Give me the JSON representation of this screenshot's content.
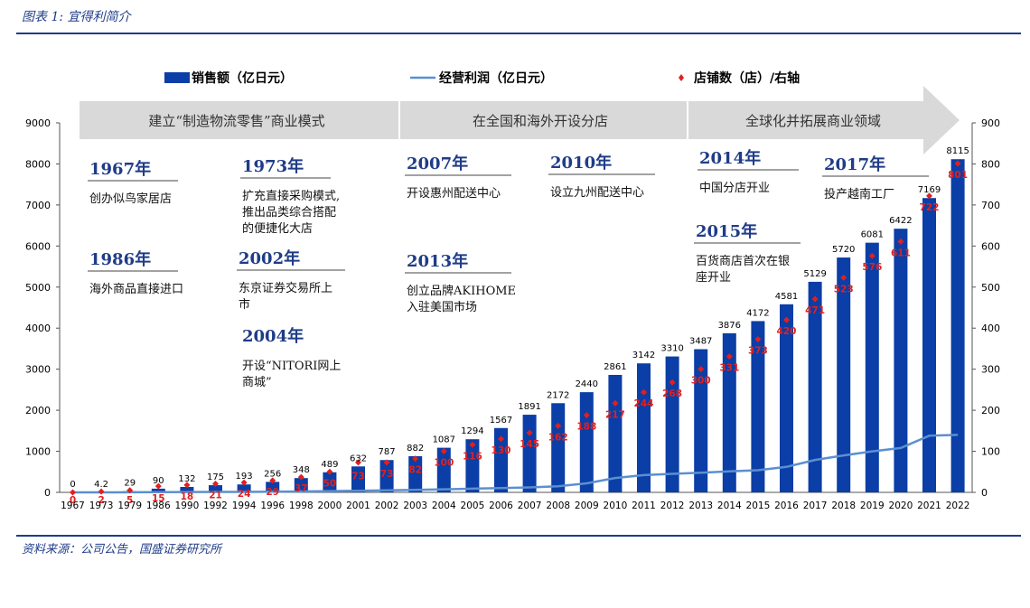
{
  "header": {
    "title": "图表 1:  宜得利简介"
  },
  "footer": {
    "source": "资料来源：公司公告，国盛证券研究所"
  },
  "colors": {
    "bar": "#0b3ea6",
    "line": "#5b8fd1",
    "dot": "#e02020",
    "arrow": "#d9d9d9",
    "accent": "#1f3c88"
  },
  "legend": {
    "bar": "销售额（亿日元）",
    "line": "经营利润（亿日元）",
    "dot": "店铺数（店）/右轴"
  },
  "phases": [
    "建立“制造物流零售”商业模式",
    "在全国和海外开设分店",
    "全球化并拓展商业领域"
  ],
  "milestones": [
    {
      "year": "1967年",
      "text": [
        "创办似鸟家居店"
      ]
    },
    {
      "year": "1986年",
      "text": [
        "海外商品直接进口"
      ]
    },
    {
      "year": "1973年",
      "text": [
        "扩充直接采购模式,",
        "推出品类综合搭配",
        "的便捷化大店"
      ]
    },
    {
      "year": "2002年",
      "text": [
        "东京证券交易所上",
        "市"
      ]
    },
    {
      "year": "2004年",
      "text": [
        "开设“NITORI网上",
        "商城”"
      ]
    },
    {
      "year": "2007年",
      "text": [
        "开设惠州配送中心"
      ]
    },
    {
      "year": "2013年",
      "text": [
        "创立品牌AKIHOME",
        "入驻美国市场"
      ]
    },
    {
      "year": "2010年",
      "text": [
        "设立九州配送中心"
      ]
    },
    {
      "year": "2014年",
      "text": [
        "中国分店开业"
      ]
    },
    {
      "year": "2015年",
      "text": [
        "百货商店首次在银",
        "座开业"
      ]
    },
    {
      "year": "2017年",
      "text": [
        "投产越南工厂"
      ]
    }
  ],
  "chart_data": {
    "type": "bar",
    "categories": [
      "1967",
      "1973",
      "1979",
      "1986",
      "1990",
      "1992",
      "1994",
      "1996",
      "1998",
      "2000",
      "2001",
      "2002",
      "2003",
      "2004",
      "2005",
      "2006",
      "2007",
      "2008",
      "2009",
      "2010",
      "2011",
      "2012",
      "2013",
      "2014",
      "2015",
      "2016",
      "2017",
      "2018",
      "2019",
      "2020",
      "2021",
      "2022"
    ],
    "series": [
      {
        "name": "销售额（亿日元）",
        "type": "bar",
        "axis": "left",
        "values": [
          0,
          4.2,
          29,
          90,
          132,
          175,
          193,
          256,
          348,
          489,
          632,
          787,
          882,
          1087,
          1294,
          1567,
          1891,
          2172,
          2440,
          2861,
          3142,
          3310,
          3487,
          3876,
          4172,
          4581,
          5129,
          5720,
          6081,
          6422,
          7169,
          8115
        ],
        "labels": [
          "0",
          "4.2",
          "29",
          "90",
          "132",
          "175",
          "193",
          "256",
          "348",
          "489",
          "632",
          "787",
          "882",
          "1087",
          "1294",
          "1567",
          "1891",
          "2172",
          "2440",
          "2861",
          "3142",
          "3310",
          "3487",
          "3876",
          "4172",
          "4581",
          "5129",
          "5720",
          "6081",
          "6422",
          "7169",
          "8115"
        ]
      },
      {
        "name": "经营利润（亿日元）",
        "type": "line",
        "axis": "left",
        "values": [
          0,
          0,
          2,
          5,
          8,
          10,
          12,
          16,
          22,
          30,
          40,
          50,
          60,
          75,
          90,
          105,
          120,
          150,
          220,
          350,
          420,
          450,
          480,
          510,
          540,
          620,
          790,
          900,
          1000,
          1080,
          1380,
          1400
        ]
      },
      {
        "name": "店铺数（店）/右轴",
        "type": "scatter",
        "axis": "right",
        "values": [
          0,
          2,
          5,
          15,
          18,
          21,
          24,
          29,
          37,
          50,
          73,
          73,
          82,
          100,
          116,
          130,
          145,
          162,
          188,
          217,
          244,
          268,
          300,
          331,
          373,
          420,
          471,
          523,
          576,
          611,
          722,
          801
        ],
        "labels": [
          "0",
          "2",
          "5",
          "15",
          "18",
          "21",
          "24",
          "29",
          "37",
          "50",
          "73",
          "73",
          "82",
          "100",
          "116",
          "130",
          "145",
          "162",
          "188",
          "217",
          "244",
          "268",
          "300",
          "331",
          "373",
          "420",
          "471",
          "523",
          "576",
          "611",
          "722",
          "801"
        ]
      }
    ],
    "y_left": {
      "min": 0,
      "max": 9000,
      "ticks": [
        "0",
        "1000",
        "2000",
        "3000",
        "4000",
        "5000",
        "6000",
        "7000",
        "8000",
        "9000"
      ]
    },
    "y_right": {
      "min": 0,
      "max": 900,
      "ticks": [
        "0",
        "100",
        "200",
        "300",
        "400",
        "500",
        "600",
        "700",
        "800",
        "900"
      ]
    },
    "grid": false,
    "legend_position": "top"
  }
}
